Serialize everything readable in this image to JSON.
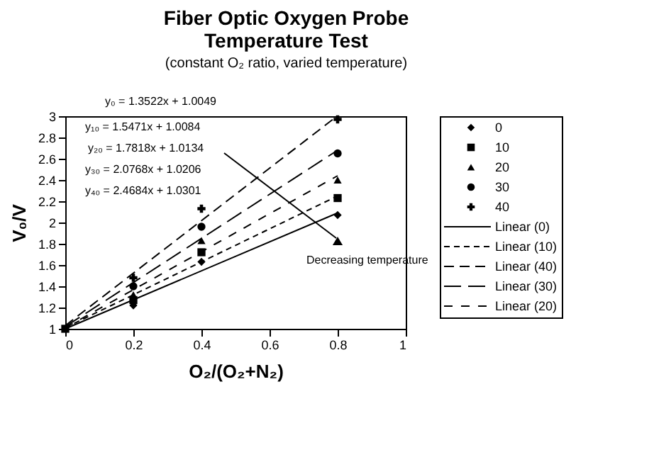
{
  "chart_data": {
    "type": "scatter",
    "title": "Fiber Optic Oxygen Probe Temperature Test",
    "subtitle": "(constant O₂ ratio, varied temperature)",
    "xlabel": "O₂/(O₂+N₂)",
    "ylabel": "V₀/V",
    "xlim": [
      0,
      1
    ],
    "xticks": [
      0,
      0.2,
      0.4,
      0.6,
      0.8,
      1
    ],
    "ylim": [
      1,
      3
    ],
    "yticks": [
      1,
      1.2,
      1.4,
      1.6,
      1.8,
      2,
      2.2,
      2.4,
      2.6,
      2.8,
      3
    ],
    "grid": false,
    "legend": "right",
    "series": [
      {
        "name": "0",
        "marker": "diamond",
        "color": "#000000",
        "x": [
          0.2,
          0.4,
          0.8
        ],
        "values": [
          1.22,
          1.63,
          2.07
        ]
      },
      {
        "name": "10",
        "marker": "square",
        "color": "#000000",
        "x": [
          0,
          0.2,
          0.4,
          0.8
        ],
        "values": [
          1,
          1.27,
          1.72,
          2.23
        ]
      },
      {
        "name": "20",
        "marker": "triangle",
        "color": "#000000",
        "x": [
          0.2,
          0.4,
          0.8
        ],
        "values": [
          1.32,
          1.83,
          2.4
        ]
      },
      {
        "name": "30",
        "marker": "circle",
        "color": "#000000",
        "x": [
          0.2,
          0.4,
          0.8
        ],
        "values": [
          1.4,
          1.96,
          2.65
        ]
      },
      {
        "name": "40",
        "marker": "cross",
        "color": "#000000",
        "x": [
          0.2,
          0.4,
          0.8
        ],
        "values": [
          1.48,
          2.13,
          2.97
        ]
      },
      {
        "name": "Linear (0)",
        "type": "line",
        "line_style": "solid",
        "color": "#000000",
        "x": [
          0,
          0.8
        ],
        "values": [
          1.0,
          2.09
        ]
      },
      {
        "name": "Linear (10)",
        "type": "line",
        "line_style": "dashed",
        "color": "#000000",
        "x": [
          0,
          0.8
        ],
        "values": [
          1.01,
          2.25
        ]
      },
      {
        "name": "Linear (40)",
        "type": "line",
        "line_style": "dashed",
        "color": "#000000",
        "x": [
          0,
          0.79
        ],
        "values": [
          1.03,
          2.98
        ]
      },
      {
        "name": "Linear (30)",
        "type": "line",
        "line_style": "dashed",
        "color": "#000000",
        "x": [
          0,
          0.8
        ],
        "values": [
          1.02,
          2.68
        ]
      },
      {
        "name": "Linear (20)",
        "type": "line",
        "line_style": "dashed",
        "color": "#000000",
        "x": [
          0,
          0.8
        ],
        "values": [
          1.01,
          2.44
        ]
      }
    ],
    "annotations": [
      "y₀ = 1.3522x + 1.0049",
      "y₁₀ = 1.5471x + 1.0084",
      "y₂₀ = 1.7818x + 1.0134",
      "y₃₀ = 2.0768x + 1.0206",
      "y₄₀ = 2.4684x + 1.0301",
      "Decreasing temperature"
    ]
  }
}
